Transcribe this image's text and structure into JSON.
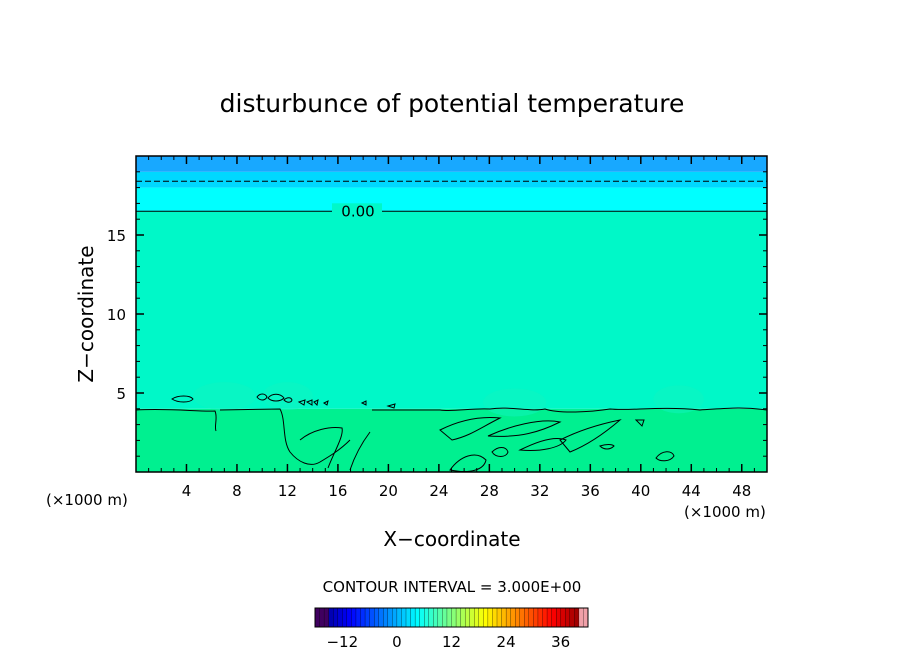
{
  "chart_data": {
    "type": "heatmap",
    "title": "disturbunce of potential temperature",
    "xlabel": "X−coordinate",
    "ylabel": "Z−coordinate",
    "x_unit_left": "(×1000 m)",
    "x_unit_right": "(×1000 m)",
    "xlim": [
      0,
      50
    ],
    "ylim": [
      0,
      20
    ],
    "x_ticks": [
      4,
      8,
      12,
      16,
      20,
      24,
      28,
      32,
      36,
      40,
      44,
      48
    ],
    "x_tick_labels": [
      "4",
      "8",
      "12",
      "16",
      "20",
      "24",
      "28",
      "32",
      "36",
      "40",
      "44",
      "48"
    ],
    "y_ticks": [
      5,
      10,
      15
    ],
    "y_tick_labels": [
      "5",
      "10",
      "15"
    ],
    "contour_label": "0.00",
    "contour_interval_text": "CONTOUR INTERVAL = 3.000E+00",
    "colorbar": {
      "range": [
        -18,
        42
      ],
      "ticks": [
        -12,
        0,
        12,
        24,
        36
      ],
      "tick_labels": [
        "−12",
        "0",
        "12",
        "24",
        "36"
      ]
    },
    "field_bands": [
      {
        "z_from": 0,
        "z_to": 4,
        "value": 1.5,
        "color": "#00f090"
      },
      {
        "z_from": 4,
        "z_to": 16.5,
        "value": 0.5,
        "color": "#00f8c8"
      },
      {
        "z_from": 16.5,
        "z_to": 18,
        "value": -1,
        "color": "#00ffff"
      },
      {
        "z_from": 18,
        "z_to": 19,
        "value": -2,
        "color": "#00d8ff"
      },
      {
        "z_from": 19,
        "z_to": 20,
        "value": -3,
        "color": "#18a8ff"
      }
    ],
    "contour_lines": [
      {
        "level": 0.0,
        "style": "solid",
        "z": 16.5
      },
      {
        "level": -3.0,
        "style": "dashed",
        "z": 18.4
      }
    ]
  }
}
